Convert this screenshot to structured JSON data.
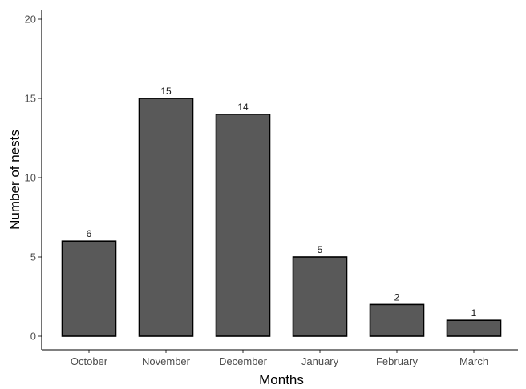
{
  "chart_data": {
    "type": "bar",
    "categories": [
      "October",
      "November",
      "December",
      "January",
      "February",
      "March"
    ],
    "values": [
      6,
      15,
      14,
      5,
      2,
      1
    ],
    "data_labels": [
      "6",
      "15",
      "14",
      "5",
      "2",
      "1"
    ],
    "title": "",
    "xlabel": "Months",
    "ylabel": "Number of nests",
    "ylim": [
      0,
      20
    ],
    "yticks": [
      0,
      5,
      10,
      15,
      20
    ],
    "ytick_labels": [
      "0",
      "5",
      "10",
      "15",
      "20"
    ],
    "grid": false,
    "legend": "none",
    "bar_color": "#595959",
    "bar_edge_color": "#000000"
  }
}
